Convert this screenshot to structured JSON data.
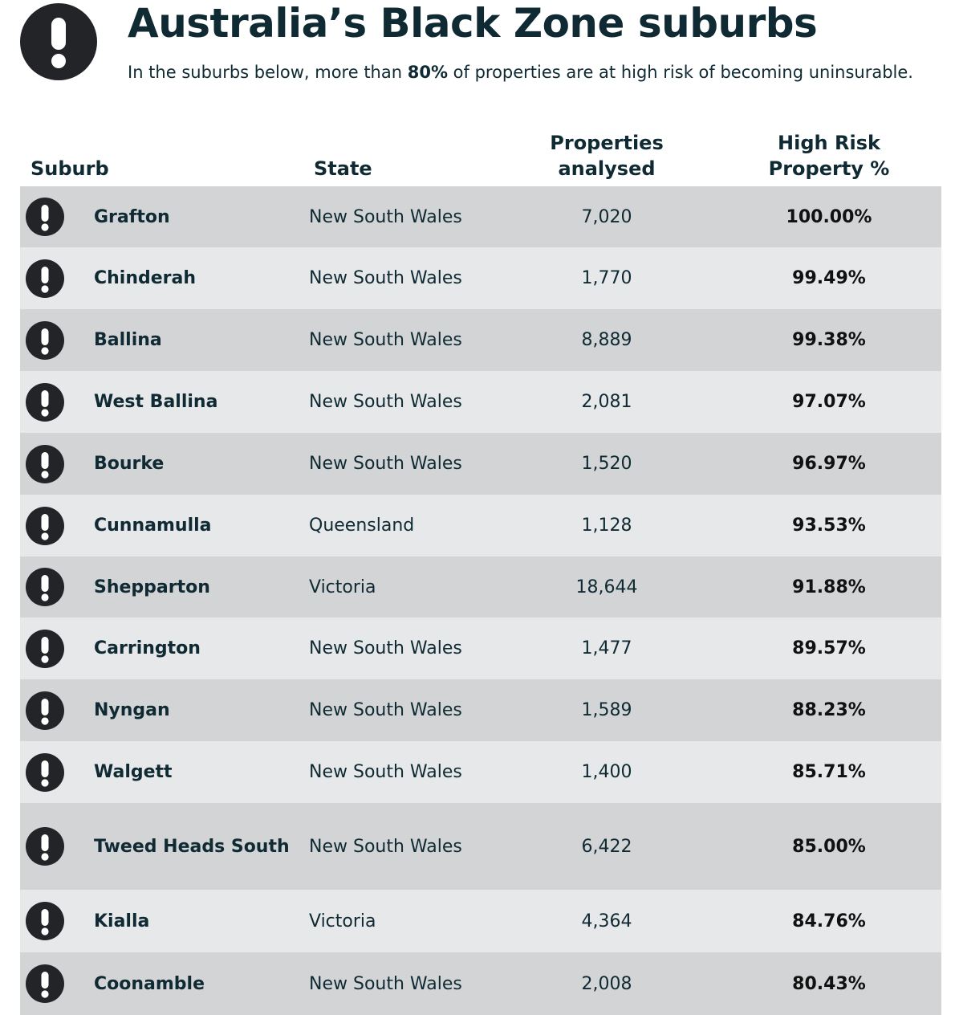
{
  "header": {
    "title": "Australia’s Black Zone suburbs",
    "subtitle_before": "In the suburbs below, more than ",
    "subtitle_bold": "80%",
    "subtitle_after": " of properties are at high risk of becoming uninsurable."
  },
  "table": {
    "columns": {
      "suburb": "Suburb",
      "state": "State",
      "properties_line1": "Properties",
      "properties_line2": "analysed",
      "risk_line1": "High Risk",
      "risk_line2": "Property %"
    },
    "rows": [
      {
        "suburb": "Grafton",
        "state": "New South Wales",
        "properties": "7,020",
        "risk": "100.00%"
      },
      {
        "suburb": "Chinderah",
        "state": "New South Wales",
        "properties": "1,770",
        "risk": "99.49%"
      },
      {
        "suburb": "Ballina",
        "state": "New South Wales",
        "properties": "8,889",
        "risk": "99.38%"
      },
      {
        "suburb": "West Ballina",
        "state": "New South Wales",
        "properties": "2,081",
        "risk": "97.07%"
      },
      {
        "suburb": "Bourke",
        "state": "New South Wales",
        "properties": "1,520",
        "risk": "96.97%"
      },
      {
        "suburb": "Cunnamulla",
        "state": "Queensland",
        "properties": "1,128",
        "risk": "93.53%"
      },
      {
        "suburb": "Shepparton",
        "state": "Victoria",
        "properties": "18,644",
        "risk": "91.88%"
      },
      {
        "suburb": "Carrington",
        "state": "New South Wales",
        "properties": "1,477",
        "risk": "89.57%"
      },
      {
        "suburb": "Nyngan",
        "state": "New South Wales",
        "properties": "1,589",
        "risk": "88.23%"
      },
      {
        "suburb": "Walgett",
        "state": "New South Wales",
        "properties": "1,400",
        "risk": "85.71%"
      },
      {
        "suburb": "Tweed Heads South",
        "state": "New South Wales",
        "properties": "6,422",
        "risk": "85.00%"
      },
      {
        "suburb": "Kialla",
        "state": "Victoria",
        "properties": "4,364",
        "risk": "84.76%"
      },
      {
        "suburb": "Coonamble",
        "state": "New South Wales",
        "properties": "2,008",
        "risk": "80.43%"
      }
    ]
  },
  "icons": {
    "header_icon": "exclamation-circle-icon",
    "row_icon": "exclamation-circle-icon"
  },
  "colors": {
    "text": "#0f2a33",
    "icon": "#222427",
    "row_dark": "#d3d4d6",
    "row_light": "#e7e8ea"
  }
}
